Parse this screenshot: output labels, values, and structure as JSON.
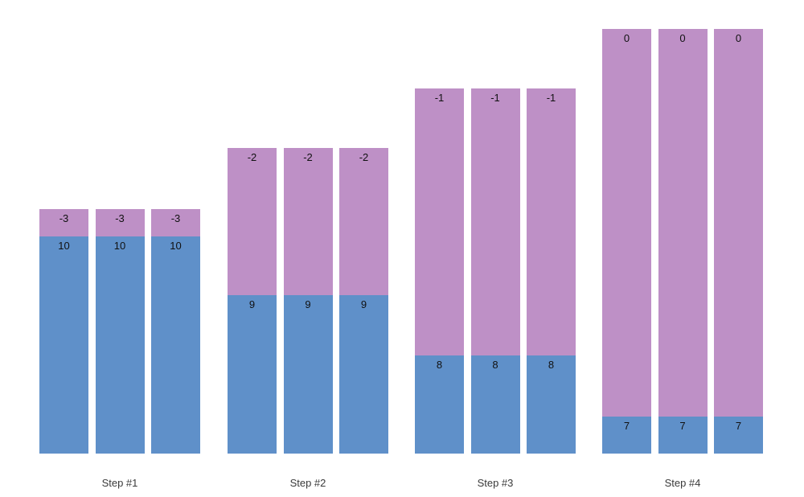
{
  "chart_data": {
    "type": "bar",
    "subtype": "stacked-grouped",
    "title": "",
    "xlabel": "",
    "ylabel": "",
    "axes_visible": false,
    "grid": false,
    "legend": "none",
    "background": "#ffffff",
    "colors": {
      "blue_series": "#5F90C9",
      "purple_series": "#BE90C6",
      "value_label": "#111111",
      "step_label": "#3A3A3A"
    },
    "categories": [
      "Step #1",
      "Step #2",
      "Step #3",
      "Step #4"
    ],
    "series": [
      {
        "name": "blue-bottom-segment",
        "value_labels": [
          "10",
          "9",
          "8",
          "7"
        ]
      },
      {
        "name": "purple-top-segment",
        "value_labels": [
          "-3",
          "-2",
          "-1",
          "0"
        ]
      }
    ],
    "groups": [
      {
        "label": "Step #1",
        "bar_count": 3,
        "purple_label": "-3",
        "blue_label": "10",
        "purple_height": 34,
        "blue_height": 270
      },
      {
        "label": "Step #2",
        "bar_count": 3,
        "purple_label": "-2",
        "blue_label": "9",
        "purple_height": 183,
        "blue_height": 197
      },
      {
        "label": "Step #3",
        "bar_count": 3,
        "purple_label": "-1",
        "blue_label": "8",
        "purple_height": 332,
        "blue_height": 122
      },
      {
        "label": "Step #4",
        "bar_count": 3,
        "purple_label": "0",
        "blue_label": "7",
        "purple_height": 482,
        "blue_height": 46
      }
    ]
  }
}
